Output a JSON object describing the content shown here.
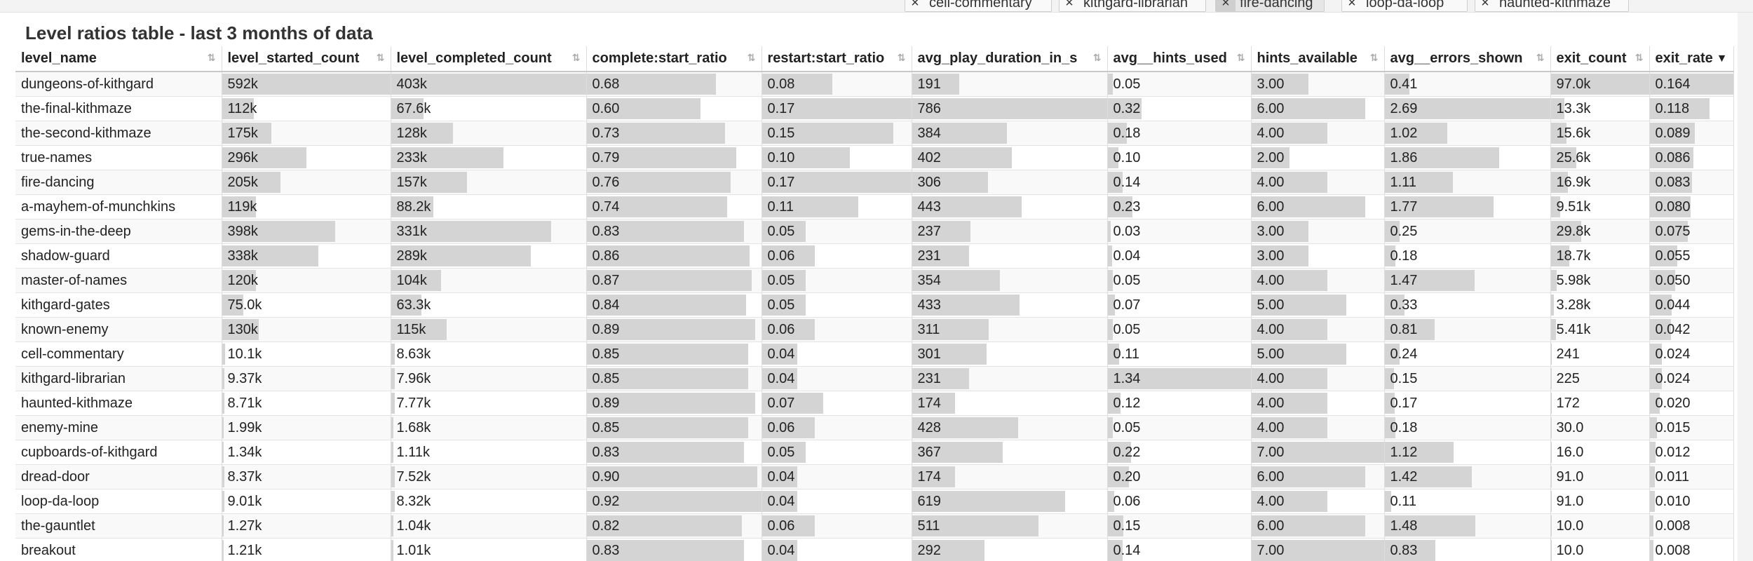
{
  "filter_tags": [
    {
      "label": "cell-commentary",
      "active": false
    },
    {
      "label": "kithgard-librarian",
      "active": false
    },
    {
      "label": "fire-dancing",
      "active": true
    },
    {
      "label": "loop-da-loop",
      "active": false
    },
    {
      "label": "haunted-kithmaze",
      "active": false
    }
  ],
  "title": "Level ratios table - last 3 months of data",
  "sort_column": "exit_rate",
  "columns": [
    {
      "key": "level_name",
      "label": "level_name"
    },
    {
      "key": "started",
      "label": "level_started_count"
    },
    {
      "key": "completed",
      "label": "level_completed_count"
    },
    {
      "key": "csr",
      "label": "complete:start_ratio"
    },
    {
      "key": "rsr",
      "label": "restart:start_ratio"
    },
    {
      "key": "dur",
      "label": "avg_play_duration_in_s"
    },
    {
      "key": "hints",
      "label": "avg__hints_used"
    },
    {
      "key": "avail",
      "label": "hints_available"
    },
    {
      "key": "errors",
      "label": "avg__errors_shown"
    },
    {
      "key": "exits",
      "label": "exit_count"
    },
    {
      "key": "rate",
      "label": "exit_rate"
    }
  ],
  "rows": [
    {
      "level_name": "dungeons-of-kithgard",
      "started": "592k",
      "completed": "403k",
      "csr": "0.68",
      "rsr": "0.08",
      "dur": "191",
      "hints": "0.05",
      "avail": "3.00",
      "errors": "0.41",
      "exits": "97.0k",
      "rate": "0.164"
    },
    {
      "level_name": "the-final-kithmaze",
      "started": "112k",
      "completed": "67.6k",
      "csr": "0.60",
      "rsr": "0.17",
      "dur": "786",
      "hints": "0.32",
      "avail": "6.00",
      "errors": "2.69",
      "exits": "13.3k",
      "rate": "0.118"
    },
    {
      "level_name": "the-second-kithmaze",
      "started": "175k",
      "completed": "128k",
      "csr": "0.73",
      "rsr": "0.15",
      "dur": "384",
      "hints": "0.18",
      "avail": "4.00",
      "errors": "1.02",
      "exits": "15.6k",
      "rate": "0.089"
    },
    {
      "level_name": "true-names",
      "started": "296k",
      "completed": "233k",
      "csr": "0.79",
      "rsr": "0.10",
      "dur": "402",
      "hints": "0.10",
      "avail": "2.00",
      "errors": "1.86",
      "exits": "25.6k",
      "rate": "0.086"
    },
    {
      "level_name": "fire-dancing",
      "started": "205k",
      "completed": "157k",
      "csr": "0.76",
      "rsr": "0.17",
      "dur": "306",
      "hints": "0.14",
      "avail": "4.00",
      "errors": "1.11",
      "exits": "16.9k",
      "rate": "0.083"
    },
    {
      "level_name": "a-mayhem-of-munchkins",
      "started": "119k",
      "completed": "88.2k",
      "csr": "0.74",
      "rsr": "0.11",
      "dur": "443",
      "hints": "0.23",
      "avail": "6.00",
      "errors": "1.77",
      "exits": "9.51k",
      "rate": "0.080"
    },
    {
      "level_name": "gems-in-the-deep",
      "started": "398k",
      "completed": "331k",
      "csr": "0.83",
      "rsr": "0.05",
      "dur": "237",
      "hints": "0.03",
      "avail": "3.00",
      "errors": "0.25",
      "exits": "29.8k",
      "rate": "0.075"
    },
    {
      "level_name": "shadow-guard",
      "started": "338k",
      "completed": "289k",
      "csr": "0.86",
      "rsr": "0.06",
      "dur": "231",
      "hints": "0.04",
      "avail": "3.00",
      "errors": "0.18",
      "exits": "18.7k",
      "rate": "0.055"
    },
    {
      "level_name": "master-of-names",
      "started": "120k",
      "completed": "104k",
      "csr": "0.87",
      "rsr": "0.05",
      "dur": "354",
      "hints": "0.05",
      "avail": "4.00",
      "errors": "1.47",
      "exits": "5.98k",
      "rate": "0.050"
    },
    {
      "level_name": "kithgard-gates",
      "started": "75.0k",
      "completed": "63.3k",
      "csr": "0.84",
      "rsr": "0.05",
      "dur": "433",
      "hints": "0.07",
      "avail": "5.00",
      "errors": "0.33",
      "exits": "3.28k",
      "rate": "0.044"
    },
    {
      "level_name": "known-enemy",
      "started": "130k",
      "completed": "115k",
      "csr": "0.89",
      "rsr": "0.06",
      "dur": "311",
      "hints": "0.05",
      "avail": "4.00",
      "errors": "0.81",
      "exits": "5.41k",
      "rate": "0.042"
    },
    {
      "level_name": "cell-commentary",
      "started": "10.1k",
      "completed": "8.63k",
      "csr": "0.85",
      "rsr": "0.04",
      "dur": "301",
      "hints": "0.11",
      "avail": "5.00",
      "errors": "0.24",
      "exits": "241",
      "rate": "0.024"
    },
    {
      "level_name": "kithgard-librarian",
      "started": "9.37k",
      "completed": "7.96k",
      "csr": "0.85",
      "rsr": "0.04",
      "dur": "231",
      "hints": "1.34",
      "avail": "4.00",
      "errors": "0.15",
      "exits": "225",
      "rate": "0.024"
    },
    {
      "level_name": "haunted-kithmaze",
      "started": "8.71k",
      "completed": "7.77k",
      "csr": "0.89",
      "rsr": "0.07",
      "dur": "174",
      "hints": "0.12",
      "avail": "4.00",
      "errors": "0.17",
      "exits": "172",
      "rate": "0.020"
    },
    {
      "level_name": "enemy-mine",
      "started": "1.99k",
      "completed": "1.68k",
      "csr": "0.85",
      "rsr": "0.06",
      "dur": "428",
      "hints": "0.05",
      "avail": "4.00",
      "errors": "0.18",
      "exits": "30.0",
      "rate": "0.015"
    },
    {
      "level_name": "cupboards-of-kithgard",
      "started": "1.34k",
      "completed": "1.11k",
      "csr": "0.83",
      "rsr": "0.05",
      "dur": "367",
      "hints": "0.22",
      "avail": "7.00",
      "errors": "1.12",
      "exits": "16.0",
      "rate": "0.012"
    },
    {
      "level_name": "dread-door",
      "started": "8.37k",
      "completed": "7.52k",
      "csr": "0.90",
      "rsr": "0.04",
      "dur": "174",
      "hints": "0.20",
      "avail": "6.00",
      "errors": "1.42",
      "exits": "91.0",
      "rate": "0.011"
    },
    {
      "level_name": "loop-da-loop",
      "started": "9.01k",
      "completed": "8.32k",
      "csr": "0.92",
      "rsr": "0.04",
      "dur": "619",
      "hints": "0.06",
      "avail": "4.00",
      "errors": "0.11",
      "exits": "91.0",
      "rate": "0.010"
    },
    {
      "level_name": "the-gauntlet",
      "started": "1.27k",
      "completed": "1.04k",
      "csr": "0.82",
      "rsr": "0.06",
      "dur": "511",
      "hints": "0.15",
      "avail": "6.00",
      "errors": "1.48",
      "exits": "10.0",
      "rate": "0.008"
    },
    {
      "level_name": "breakout",
      "started": "1.21k",
      "completed": "1.01k",
      "csr": "0.83",
      "rsr": "0.04",
      "dur": "292",
      "hints": "0.14",
      "avail": "7.00",
      "errors": "0.83",
      "exits": "10.0",
      "rate": "0.008"
    }
  ]
}
